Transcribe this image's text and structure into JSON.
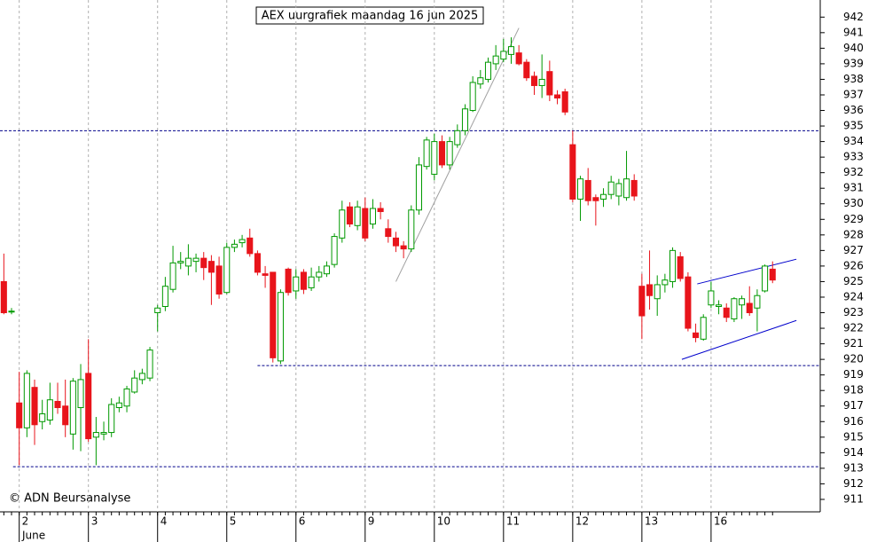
{
  "chart_data": {
    "type": "candlestick",
    "title": "AEX uurgrafiek maandag 16 jun 2025",
    "copyright": "© ADN Beursanalyse",
    "month_label": "June",
    "categories": [
      null,
      null,
      "2",
      null,
      null,
      null,
      null,
      null,
      null,
      null,
      null,
      "3",
      null,
      null,
      null,
      null,
      null,
      null,
      null,
      null,
      "4",
      null,
      null,
      null,
      null,
      null,
      null,
      null,
      null,
      "5",
      null,
      null,
      null,
      null,
      null,
      null,
      null,
      null,
      "6",
      null,
      null,
      null,
      null,
      null,
      null,
      null,
      null,
      "9",
      null,
      null,
      null,
      null,
      null,
      null,
      null,
      null,
      "10",
      null,
      null,
      null,
      null,
      null,
      null,
      null,
      null,
      "11",
      null,
      null,
      null,
      null,
      null,
      null,
      null,
      null,
      "12",
      null,
      null,
      null,
      null,
      null,
      null,
      null,
      null,
      "13",
      null,
      null,
      null,
      null,
      null,
      null,
      null,
      null,
      "16",
      null,
      null,
      null,
      null,
      null,
      null,
      null,
      null
    ],
    "open": [
      925,
      923.1,
      917.2,
      915.6,
      918.2,
      916,
      916.1,
      917.3,
      917,
      915.2,
      916.9,
      919.1,
      915,
      915.2,
      915.3,
      916.9,
      917,
      917.9,
      918.7,
      918.8,
      923,
      923.4,
      924.5,
      926.2,
      926,
      926.3,
      926.5,
      926.3,
      926,
      924.3,
      927.2,
      927.5,
      927.8,
      926.8,
      925.5,
      925.6,
      919.9,
      925.8,
      924.4,
      925.6,
      924.6,
      925.3,
      925.5,
      926.1,
      927.8,
      929.8,
      928.6,
      929.7,
      928.7,
      929.7,
      928.4,
      927.8,
      927.3,
      927.1,
      929.6,
      932.4,
      931.9,
      934,
      932.5,
      933.8,
      934.7,
      936,
      937.7,
      938,
      939,
      939.3,
      939.6,
      939.7,
      939.1,
      938.2,
      937.6,
      938.5,
      937,
      937.2,
      933.8,
      930.3,
      931.5,
      930.4,
      930.3,
      930.6,
      930.5,
      930.4,
      931.5,
      924.7,
      924.8,
      923.9,
      924.8,
      925,
      926.6,
      925.3,
      921.7,
      921.3,
      923.5,
      923.4,
      923.3,
      922.6,
      923.5,
      923.6,
      923.3,
      924.4,
      925.8
    ],
    "high": [
      926.8,
      923.3,
      919.2,
      919.3,
      918.7,
      917.4,
      918.5,
      918.5,
      918.7,
      918.8,
      919.7,
      921.3,
      916.3,
      916,
      917.5,
      917.6,
      918.3,
      919.3,
      919.4,
      920.8,
      923.5,
      925.3,
      927.3,
      926.9,
      927.4,
      926.8,
      926.9,
      926.7,
      926.6,
      927.5,
      927.7,
      928,
      928.4,
      927,
      926,
      925.6,
      924.5,
      925.9,
      925.8,
      925.8,
      925.9,
      926,
      926.3,
      928.1,
      930.2,
      930.1,
      930.2,
      930.4,
      930.3,
      930.1,
      929,
      928.2,
      927.6,
      929.9,
      933,
      934.3,
      934.5,
      934.4,
      934.3,
      935.1,
      936.4,
      938.2,
      938.6,
      939.4,
      940.2,
      940.6,
      940.7,
      940.2,
      939.3,
      938.5,
      939.6,
      939.2,
      937.3,
      937.4,
      934.7,
      931.8,
      932.3,
      930.6,
      931,
      931.8,
      931.6,
      933.4,
      931.9,
      925.5,
      927,
      925.4,
      925.5,
      927.2,
      926.9,
      925.6,
      922.3,
      922.9,
      925,
      923.8,
      923.6,
      924,
      924.1,
      924.7,
      924.5,
      926.1,
      926.3
    ],
    "low": [
      922.9,
      922.9,
      913.2,
      915,
      914.5,
      915.5,
      915.8,
      916.5,
      915,
      914.2,
      914.1,
      914.7,
      913.2,
      914.8,
      915,
      916.6,
      916.6,
      917.8,
      918.4,
      918.6,
      921.8,
      923.1,
      924.3,
      925.8,
      925.4,
      925.6,
      925.1,
      923.5,
      923.9,
      924.2,
      926.9,
      927.2,
      926.6,
      925.4,
      924.6,
      919.8,
      919.7,
      924.1,
      923.9,
      924.2,
      924.4,
      925,
      925.3,
      925.9,
      927.5,
      928.5,
      928.3,
      927.6,
      928.4,
      929,
      927.5,
      926.9,
      926.5,
      926.9,
      929.3,
      932.2,
      931.5,
      932.3,
      932.2,
      933.6,
      934.4,
      935.9,
      937.4,
      937.8,
      938.6,
      939.1,
      939,
      938.9,
      937.9,
      937,
      936.8,
      936.6,
      936.4,
      935.7,
      930.1,
      928.9,
      929.9,
      928.6,
      929.8,
      930.3,
      929.9,
      930.2,
      930.2,
      921.3,
      923.2,
      922.8,
      924.3,
      924.6,
      925,
      921.8,
      921.1,
      921.2,
      923.3,
      922.9,
      922.4,
      922.4,
      922.6,
      922.8,
      921.8,
      924.3,
      924.9
    ],
    "close": [
      923,
      923.1,
      915.6,
      919.1,
      915.8,
      916.5,
      917.4,
      916.9,
      915.8,
      918.6,
      918.7,
      914.9,
      915.3,
      915.3,
      917.1,
      917.2,
      918.1,
      918.8,
      919.1,
      920.6,
      923.3,
      924.7,
      926.2,
      926.3,
      926.5,
      926.5,
      925.9,
      925.6,
      924.2,
      927.2,
      927.4,
      927.7,
      926.8,
      925.6,
      925.4,
      920.1,
      924.3,
      924.3,
      925.3,
      924.5,
      925.3,
      925.6,
      926,
      927.9,
      929.6,
      928.7,
      929.8,
      927.8,
      929.7,
      929.5,
      927.9,
      927.3,
      927.1,
      929.6,
      932.5,
      934.1,
      934,
      932.5,
      934,
      934.7,
      936.1,
      937.8,
      938.1,
      939.1,
      939.5,
      939.8,
      940.1,
      939,
      938.1,
      937.6,
      938,
      937,
      936.8,
      935.9,
      930.3,
      931.6,
      930.2,
      930.2,
      930.6,
      931.4,
      931.3,
      931.6,
      930.5,
      922.8,
      924.1,
      924.8,
      925.1,
      927,
      925.2,
      922,
      921.4,
      922.7,
      924.4,
      923.5,
      922.7,
      923.9,
      923.9,
      923,
      924.1,
      926,
      925.1
    ],
    "up_color": "#009900",
    "down_color": "#e8141b",
    "xlim": [
      -0.5,
      106.2
    ],
    "ylim": [
      910.2,
      943.1
    ],
    "yticks": [
      911,
      912,
      913,
      914,
      915,
      916,
      917,
      918,
      919,
      920,
      921,
      922,
      923,
      924,
      925,
      926,
      927,
      928,
      929,
      930,
      931,
      932,
      933,
      934,
      935,
      936,
      937,
      938,
      939,
      940,
      941,
      942
    ],
    "levels": [
      {
        "value": 934.7,
        "from": -0.5,
        "color": "#00008b"
      },
      {
        "value": 919.6,
        "from": 33,
        "color": "#00008b"
      },
      {
        "value": 913.1,
        "from": 1.2,
        "color": "#00008b"
      }
    ],
    "trendlines": [
      {
        "color": "#a0a0a0",
        "x": [
          51,
          67
        ],
        "y": [
          925.0,
          941.3
        ]
      },
      {
        "color": "#0000cc",
        "x": [
          90.2,
          103.1
        ],
        "y": [
          924.85,
          926.44
        ]
      },
      {
        "color": "#0000cc",
        "x": [
          88.2,
          103.1
        ],
        "y": [
          920.0,
          922.5
        ]
      }
    ]
  }
}
